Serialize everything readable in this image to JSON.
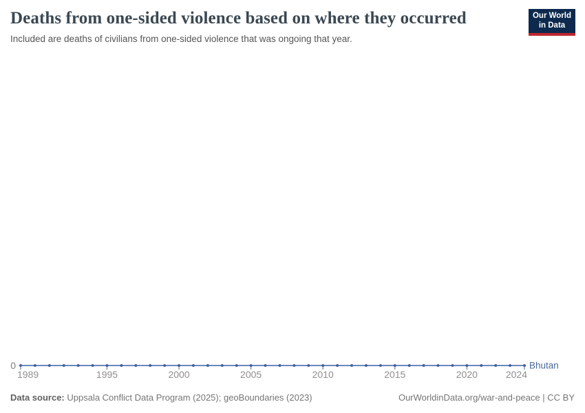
{
  "header": {
    "title": "Deaths from one-sided violence based on where they occurred",
    "subtitle": "Included are deaths of civilians from one-sided violence that was ongoing that year."
  },
  "logo": {
    "line1": "Our World",
    "line2": "in Data",
    "background_color": "#0d2a4e",
    "bar_color": "#c0272d"
  },
  "footer": {
    "datasource_label": "Data source:",
    "datasource_value": " Uppsala Conflict Data Program (2025); geoBoundaries (2023)",
    "right": "OurWorldinData.org/war-and-peace | CC BY"
  },
  "chart_data": {
    "type": "line",
    "title": "Deaths from one-sided violence based on where they occurred",
    "x_range": [
      1989,
      2024
    ],
    "x_ticks": [
      1989,
      1995,
      2000,
      2005,
      2010,
      2015,
      2020,
      2024
    ],
    "y_ticks": [
      0
    ],
    "y_zero_label": "0",
    "ylim": [
      0,
      0
    ],
    "grid": false,
    "legend_position": "end-of-line",
    "series": [
      {
        "name": "Bhutan",
        "x": [
          1989,
          1990,
          1991,
          1992,
          1993,
          1994,
          1995,
          1996,
          1997,
          1998,
          1999,
          2000,
          2001,
          2002,
          2003,
          2004,
          2005,
          2006,
          2007,
          2008,
          2009,
          2010,
          2011,
          2012,
          2013,
          2014,
          2015,
          2016,
          2017,
          2018,
          2019,
          2020,
          2021,
          2022,
          2023,
          2024
        ],
        "y": [
          0,
          0,
          0,
          0,
          0,
          0,
          0,
          0,
          0,
          0,
          0,
          0,
          0,
          0,
          0,
          0,
          0,
          0,
          0,
          0,
          0,
          0,
          0,
          0,
          0,
          0,
          0,
          0,
          0,
          0,
          0,
          0,
          0,
          0,
          0,
          0
        ]
      }
    ],
    "colors": {
      "line": "#6989bd",
      "dot": "#44639e",
      "tick": "#4a679e",
      "tick_label": "#8e8e8e",
      "zero_label": "#7d7d7d",
      "entity_label": "#4c6a9c"
    }
  }
}
